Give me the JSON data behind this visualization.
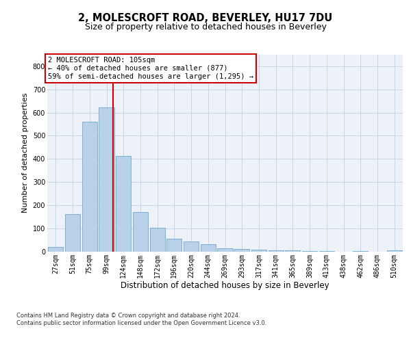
{
  "title": "2, MOLESCROFT ROAD, BEVERLEY, HU17 7DU",
  "subtitle": "Size of property relative to detached houses in Beverley",
  "xlabel": "Distribution of detached houses by size in Beverley",
  "ylabel": "Number of detached properties",
  "categories": [
    "27sqm",
    "51sqm",
    "75sqm",
    "99sqm",
    "124sqm",
    "148sqm",
    "172sqm",
    "196sqm",
    "220sqm",
    "244sqm",
    "269sqm",
    "293sqm",
    "317sqm",
    "341sqm",
    "365sqm",
    "389sqm",
    "413sqm",
    "438sqm",
    "462sqm",
    "486sqm",
    "510sqm"
  ],
  "values": [
    20,
    162,
    560,
    622,
    412,
    170,
    103,
    56,
    42,
    30,
    14,
    10,
    8,
    5,
    3,
    2,
    1,
    0,
    1,
    0,
    5
  ],
  "bar_color": "#b8d0e8",
  "bar_edge_color": "#6fa8d0",
  "vline_color": "#cc0000",
  "vline_xindex": 3.38,
  "annotation_text": "2 MOLESCROFT ROAD: 105sqm\n← 40% of detached houses are smaller (877)\n59% of semi-detached houses are larger (1,295) →",
  "annotation_box_facecolor": "#ffffff",
  "annotation_box_edgecolor": "#cc0000",
  "ylim": [
    0,
    850
  ],
  "yticks": [
    0,
    100,
    200,
    300,
    400,
    500,
    600,
    700,
    800
  ],
  "title_fontsize": 10.5,
  "subtitle_fontsize": 9,
  "xlabel_fontsize": 8.5,
  "ylabel_fontsize": 8,
  "tick_fontsize": 7,
  "annotation_fontsize": 7.5,
  "footer_text": "Contains HM Land Registry data © Crown copyright and database right 2024.\nContains public sector information licensed under the Open Government Licence v3.0.",
  "footer_fontsize": 6,
  "background_color": "#ffffff",
  "grid_color": "#c8d4e4",
  "axes_background": "#edf1f8"
}
